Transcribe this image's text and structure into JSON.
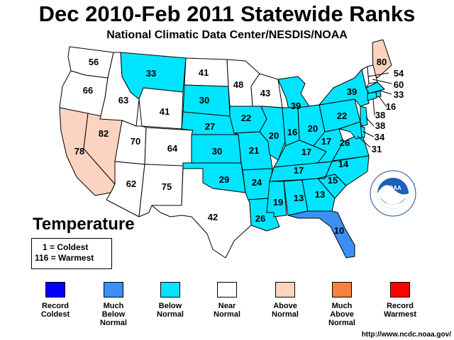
{
  "title": "Dec 2010-Feb 2011 Statewide Ranks",
  "subtitle": "National Climatic Data Center/NESDIS/NOAA",
  "legend_title": "Temperature",
  "key": {
    "line1": "1 = Coldest",
    "line2": "116 = Warmest"
  },
  "categories": [
    {
      "id": "record_coldest",
      "label_line1": "Record",
      "label_line2": "Coldest",
      "label_line3": "",
      "color": "#0000ff"
    },
    {
      "id": "much_below",
      "label_line1": "Much",
      "label_line2": "Below",
      "label_line3": "Normal",
      "color": "#3d8ff5"
    },
    {
      "id": "below",
      "label_line1": "Below",
      "label_line2": "Normal",
      "label_line3": "",
      "color": "#00e5ff"
    },
    {
      "id": "near",
      "label_line1": "Near",
      "label_line2": "Normal",
      "label_line3": "",
      "color": "#ffffff"
    },
    {
      "id": "above",
      "label_line1": "Above",
      "label_line2": "Normal",
      "label_line3": "",
      "color": "#fbd3c0"
    },
    {
      "id": "much_above",
      "label_line1": "Much",
      "label_line2": "Above",
      "label_line3": "Normal",
      "color": "#f7813f"
    },
    {
      "id": "record_warmest",
      "label_line1": "Record",
      "label_line2": "Warmest",
      "label_line3": "",
      "color": "#ff0000"
    }
  ],
  "states": {
    "WA": {
      "rank": "56",
      "category": "near"
    },
    "OR": {
      "rank": "66",
      "category": "near"
    },
    "CA": {
      "rank": "78",
      "category": "above"
    },
    "NV": {
      "rank": "82",
      "category": "above"
    },
    "ID": {
      "rank": "63",
      "category": "near"
    },
    "MT": {
      "rank": "33",
      "category": "below"
    },
    "WY": {
      "rank": "41",
      "category": "near"
    },
    "UT": {
      "rank": "70",
      "category": "near"
    },
    "AZ": {
      "rank": "62",
      "category": "near"
    },
    "CO": {
      "rank": "64",
      "category": "near"
    },
    "NM": {
      "rank": "75",
      "category": "near"
    },
    "ND": {
      "rank": "41",
      "category": "near"
    },
    "SD": {
      "rank": "30",
      "category": "below"
    },
    "NE": {
      "rank": "27",
      "category": "below"
    },
    "KS": {
      "rank": "30",
      "category": "below"
    },
    "OK": {
      "rank": "29",
      "category": "below"
    },
    "TX": {
      "rank": "42",
      "category": "near"
    },
    "MN": {
      "rank": "48",
      "category": "near"
    },
    "IA": {
      "rank": "22",
      "category": "below"
    },
    "MO": {
      "rank": "21",
      "category": "below"
    },
    "AR": {
      "rank": "24",
      "category": "below"
    },
    "LA": {
      "rank": "26",
      "category": "below"
    },
    "WI": {
      "rank": "43",
      "category": "near"
    },
    "IL": {
      "rank": "20",
      "category": "below"
    },
    "MI": {
      "rank": "39",
      "category": "below"
    },
    "IN": {
      "rank": "16",
      "category": "below"
    },
    "OH": {
      "rank": "20",
      "category": "below"
    },
    "KY": {
      "rank": "17",
      "category": "below"
    },
    "TN": {
      "rank": "17",
      "category": "below"
    },
    "MS": {
      "rank": "19",
      "category": "below"
    },
    "AL": {
      "rank": "13",
      "category": "below"
    },
    "GA": {
      "rank": "13",
      "category": "below"
    },
    "FL": {
      "rank": "10",
      "category": "much_below"
    },
    "SC": {
      "rank": "15",
      "category": "below"
    },
    "NC": {
      "rank": "14",
      "category": "below"
    },
    "VA": {
      "rank": "26",
      "category": "below"
    },
    "WV": {
      "rank": "17",
      "category": "below"
    },
    "PA": {
      "rank": "22",
      "category": "below"
    },
    "NY": {
      "rank": "39",
      "category": "below"
    },
    "ME": {
      "rank": "80",
      "category": "above"
    },
    "VT": {
      "rank": "54",
      "category": "near"
    },
    "NH": {
      "rank": "60",
      "category": "near"
    },
    "MA": {
      "rank": "33",
      "category": "below"
    },
    "RI": {
      "rank": "16",
      "category": "below"
    },
    "CT": {
      "rank": "38",
      "category": "below"
    },
    "NJ": {
      "rank": "38",
      "category": "below"
    },
    "DE": {
      "rank": "34",
      "category": "below"
    },
    "MD": {
      "rank": "31",
      "category": "below"
    }
  },
  "logo_text": "NOAA",
  "url": "http://www.ncdc.noaa.gov/"
}
